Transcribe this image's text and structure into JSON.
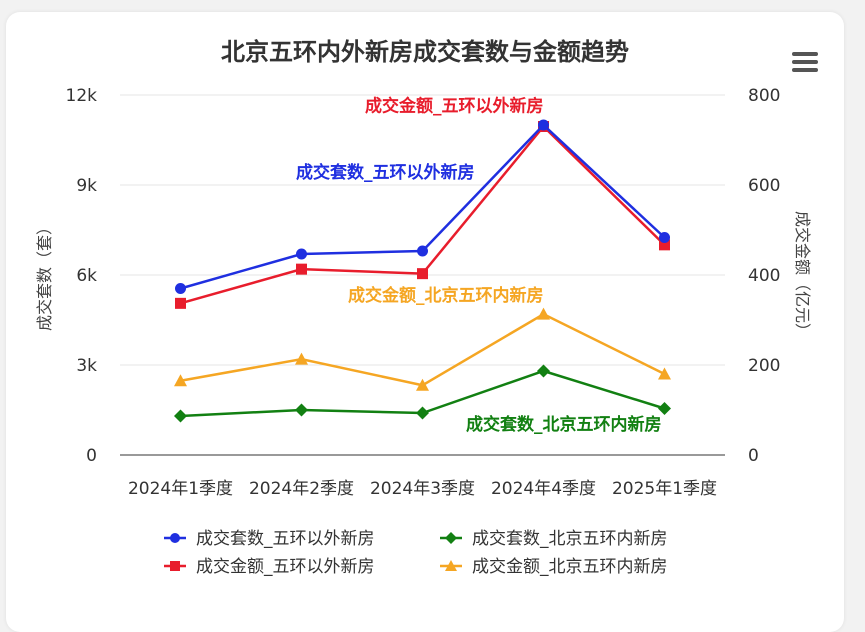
{
  "chart_data": {
    "type": "line",
    "title": "北京五环内外新房成交套数与金额趋势",
    "categories": [
      "2024年1季度",
      "2024年2季度",
      "2024年3季度",
      "2024年4季度",
      "2025年1季度"
    ],
    "ylabel_left": "成交套数（套）",
    "ylabel_right": "成交金额（亿元）",
    "ylim_left": [
      0,
      12000
    ],
    "ylim_right": [
      0,
      800
    ],
    "yticks_left": [
      "0",
      "3k",
      "6k",
      "9k",
      "12k"
    ],
    "yticks_right": [
      "0",
      "200",
      "400",
      "600",
      "800"
    ],
    "grid": true,
    "legend_position": "bottom",
    "series": [
      {
        "name": "成交套数_五环以外新房",
        "axis": "left",
        "color": "#1f2fe0",
        "marker": "circle",
        "values": [
          5550,
          6700,
          6800,
          11000,
          7250
        ]
      },
      {
        "name": "成交套数_北京五环内新房",
        "axis": "left",
        "color": "#128012",
        "marker": "diamond",
        "values": [
          1300,
          1500,
          1400,
          2800,
          1550
        ]
      },
      {
        "name": "成交金额_五环以外新房",
        "axis": "right",
        "color": "#e81d2c",
        "marker": "square",
        "values": [
          337,
          413,
          403,
          730,
          467
        ]
      },
      {
        "name": "成交金额_北京五环内新房",
        "axis": "right",
        "color": "#f5a623",
        "marker": "triangle",
        "values": [
          165,
          213,
          155,
          313,
          180
        ]
      }
    ],
    "annotations": [
      {
        "text": "成交金额_五环以外新房",
        "series": 2
      },
      {
        "text": "成交套数_五环以外新房",
        "series": 0
      },
      {
        "text": "成交金额_北京五环内新房",
        "series": 3
      },
      {
        "text": "成交套数_北京五环内新房",
        "series": 1
      }
    ]
  },
  "toolbar": {
    "menu_icon": "hamburger-menu-icon"
  }
}
